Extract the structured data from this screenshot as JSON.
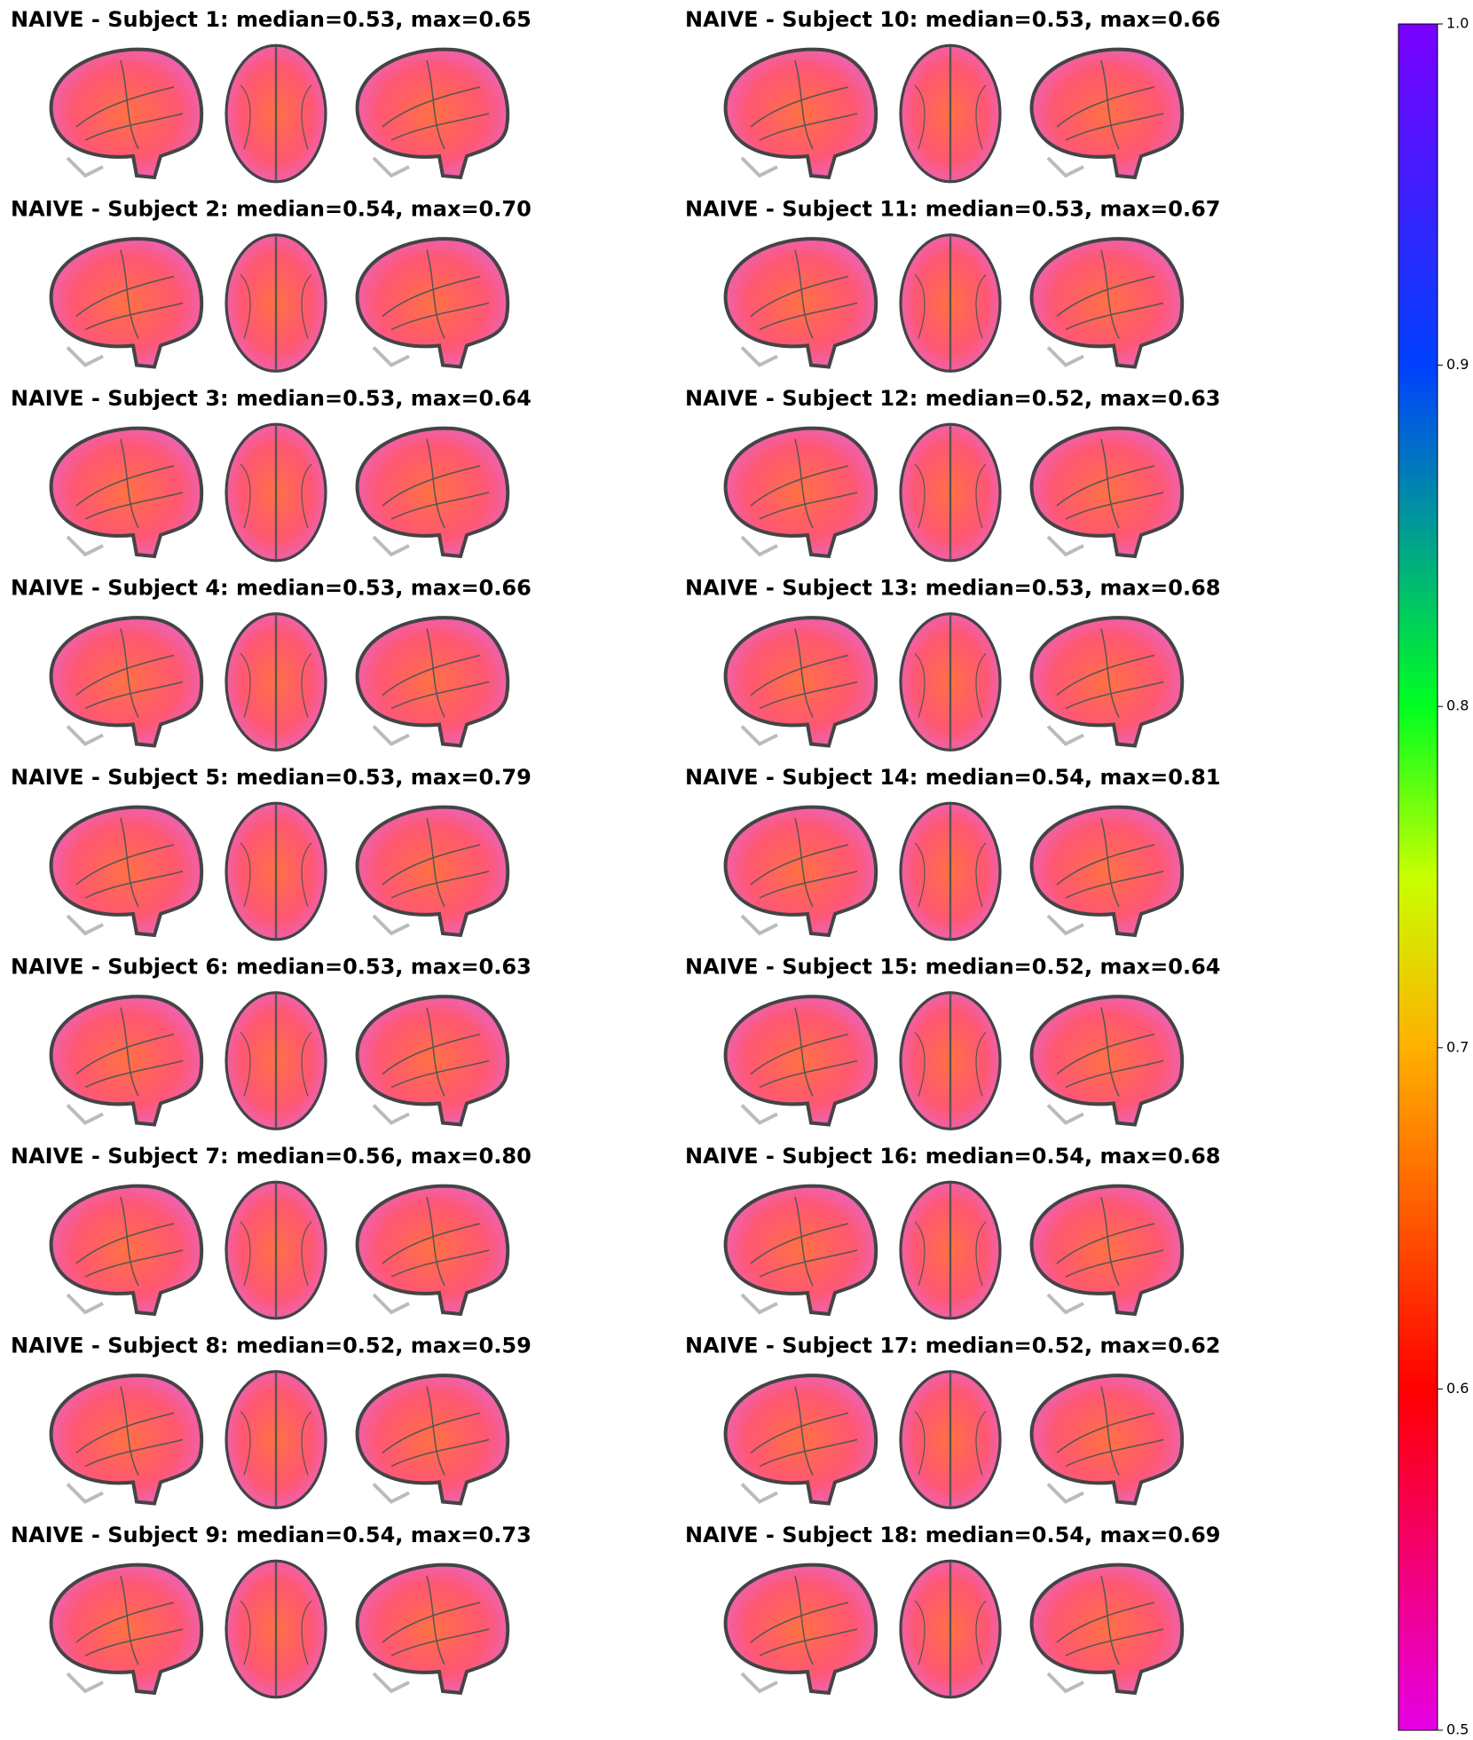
{
  "panels": [
    {
      "title": "NAIVE - Subject 1: median=0.53, max=0.65"
    },
    {
      "title": "NAIVE - Subject 2: median=0.54, max=0.70"
    },
    {
      "title": "NAIVE - Subject 3: median=0.53, max=0.64"
    },
    {
      "title": "NAIVE - Subject 4: median=0.53, max=0.66"
    },
    {
      "title": "NAIVE - Subject 5: median=0.53, max=0.79"
    },
    {
      "title": "NAIVE - Subject 6: median=0.53, max=0.63"
    },
    {
      "title": "NAIVE - Subject 7: median=0.56, max=0.80"
    },
    {
      "title": "NAIVE - Subject 8: median=0.52, max=0.59"
    },
    {
      "title": "NAIVE - Subject 9: median=0.54, max=0.73"
    },
    {
      "title": "NAIVE - Subject 10: median=0.53, max=0.66"
    },
    {
      "title": "NAIVE - Subject 11: median=0.53, max=0.67"
    },
    {
      "title": "NAIVE - Subject 12: median=0.52, max=0.63"
    },
    {
      "title": "NAIVE - Subject 13: median=0.53, max=0.68"
    },
    {
      "title": "NAIVE - Subject 14: median=0.54, max=0.81"
    },
    {
      "title": "NAIVE - Subject 15: median=0.52, max=0.64"
    },
    {
      "title": "NAIVE - Subject 16: median=0.54, max=0.68"
    },
    {
      "title": "NAIVE - Subject 17: median=0.52, max=0.62"
    },
    {
      "title": "NAIVE - Subject 18: median=0.54, max=0.69"
    }
  ],
  "colorbar": {
    "lim": [
      0.5,
      1.0
    ],
    "ticks": [
      0.5,
      0.6,
      0.7,
      0.8,
      0.9,
      {
        "value": 1.0,
        "label": "1.0"
      }
    ]
  }
}
